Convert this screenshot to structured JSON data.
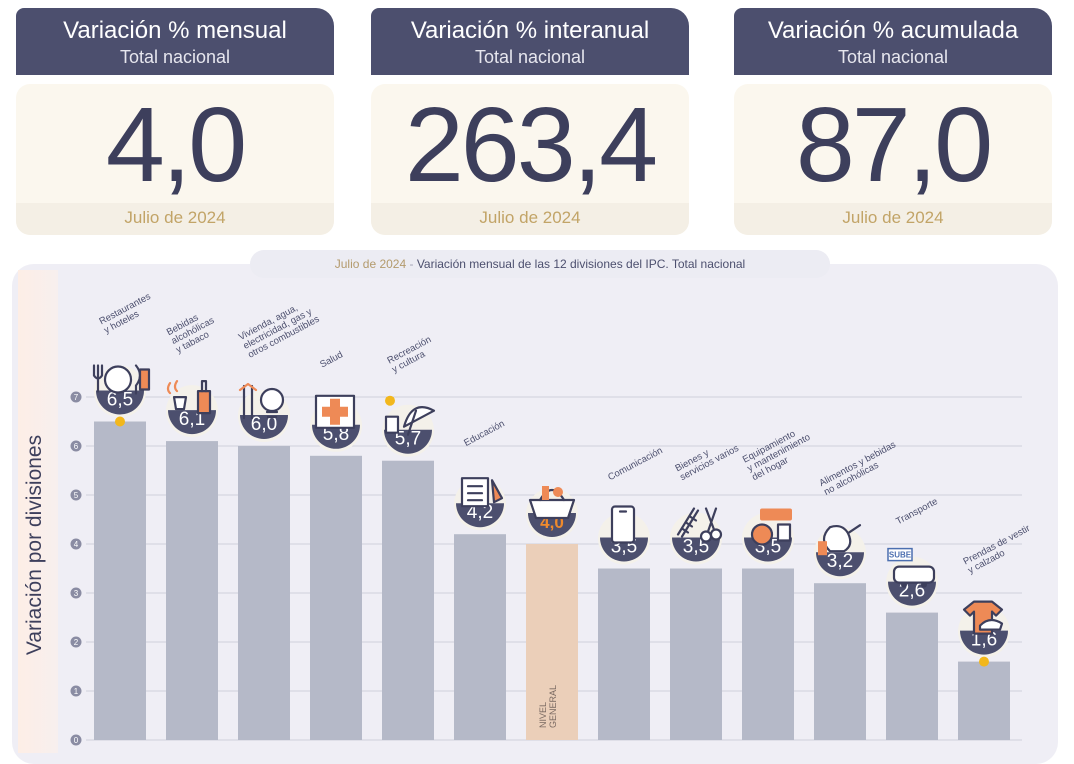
{
  "cards": [
    {
      "title": "Variación % mensual",
      "subtitle": "Total nacional",
      "value": "4,0",
      "footer": "Julio de 2024"
    },
    {
      "title": "Variación % interanual",
      "subtitle": "Total nacional",
      "value": "263,4",
      "footer": "Julio de 2024"
    },
    {
      "title": "Variación % acumulada",
      "subtitle": "Total nacional",
      "value": "87,0",
      "footer": "Julio de 2024"
    }
  ],
  "chart_title": {
    "date": "Julio de 2024",
    "separator": " - ",
    "text": "Variación mensual de las 12 divisiones del IPC. Total nacional"
  },
  "chart_data": {
    "type": "bar",
    "ylabel": "Variación por divisiones",
    "ylim": [
      0,
      7
    ],
    "yticks": [
      "0",
      "1",
      "2",
      "3",
      "4",
      "5",
      "6",
      "7"
    ],
    "grid": true,
    "categories": [
      "Restaurantes y hoteles",
      "Bebidas alcohólicas y tabaco",
      "Vivienda, agua, electricidad, gas y otros combustibles",
      "Salud",
      "Recreación y cultura",
      "Educación",
      "Nivel general",
      "Comunicación",
      "Bienes y servicios varios",
      "Equipamiento y mantenimiento del hogar",
      "Alimentos y bebidas no alcohólicas",
      "Transporte",
      "Prendas de vestir y calzado"
    ],
    "category_label_lines": [
      [
        "Restaurantes",
        "y hoteles"
      ],
      [
        "Bebidas",
        "alcohólicas",
        "y tabaco"
      ],
      [
        "Vivienda, agua,",
        "electricidad, gas y",
        "otros combustibles"
      ],
      [
        "Salud"
      ],
      [
        "Recreación",
        "y cultura"
      ],
      [
        "Educación"
      ],
      [],
      [
        "Comunicación"
      ],
      [
        "Bienes y",
        "servicios varios"
      ],
      [
        "Equipamiento",
        "y mantenimiento",
        "del hogar"
      ],
      [
        "Alimentos y bebidas",
        "no alcohólicas"
      ],
      [
        "Transporte"
      ],
      [
        "Prendas de vestir",
        "y calzado"
      ]
    ],
    "values": [
      6.5,
      6.1,
      6.0,
      5.8,
      5.7,
      4.2,
      4.0,
      3.5,
      3.5,
      3.5,
      3.2,
      2.6,
      1.6
    ],
    "value_labels": [
      "6,5",
      "6,1",
      "6,0",
      "5,8",
      "5,7",
      "4,2",
      "4,0",
      "3,5",
      "3,5",
      "3,5",
      "3,2",
      "2,6",
      "1,6"
    ],
    "highlight_index": 6,
    "highlight_bar_text": [
      "NIVEL",
      "GENERAL"
    ],
    "marker_indices": [
      0,
      12
    ],
    "icons": [
      "restaurant-icon",
      "wine-tobacco-icon",
      "bulb-tools-icon",
      "medical-cross-icon",
      "beach-umbrella-icon",
      "books-icon",
      "shopping-basket-icon",
      "smartphone-icon",
      "comb-scissors-icon",
      "appliances-icon",
      "food-chicken-icon",
      "bus-card-icon",
      "clothes-icon"
    ],
    "colors": {
      "bar": "#b5b9c8",
      "highlight_bar": "#ebcfb9",
      "badge": "#4c4f6e",
      "highlight_value": "#f08a2c",
      "marker": "#f2b71c",
      "icon_stroke": "#3d3f5c",
      "icon_accent": "#ee8a56"
    }
  }
}
